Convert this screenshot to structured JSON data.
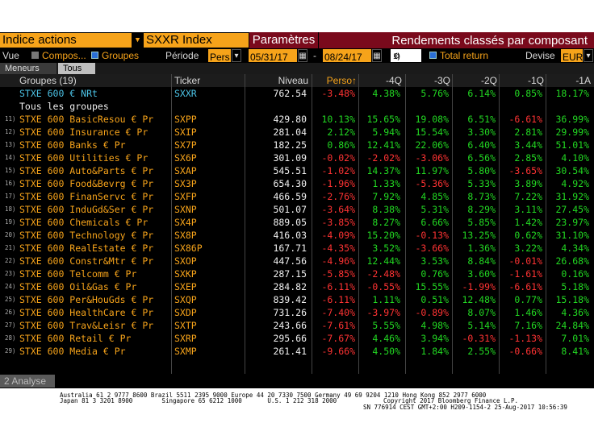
{
  "topbar": {
    "index_label": "Indice actions",
    "ticker": "SXXR Index",
    "params_label": "Paramètres",
    "title": "Rendements classés par composant"
  },
  "controls": {
    "vue_label": "Vue",
    "opt_compos": "Compos...",
    "opt_groupes": "Groupes",
    "periode_label": "Période",
    "period_value": "Pers",
    "date_start": "05/31/17",
    "date_sep": "-",
    "date_end": "08/24/17",
    "setting_code": "1)",
    "total_return_label": "Total return",
    "devise_label": "Devise",
    "devise_value": "EUR"
  },
  "tabs": [
    "Meneurs",
    "Tous"
  ],
  "headers": {
    "groupes": "Groupes (19)",
    "ticker": "Ticker",
    "niveau": "Niveau",
    "perso": "Perso↑",
    "m4q": "-4Q",
    "m3q": "-3Q",
    "m2q": "-2Q",
    "m1q": "-1Q",
    "m1a": "-1A"
  },
  "colors": {
    "orange": "#f6a31a",
    "green": "#22d822",
    "red": "#ff3333",
    "maroon": "#7a0a1c",
    "cyan": "#4cc3e6"
  },
  "index_row": {
    "name": "STXE 600 € NRt",
    "ticker": "SXXR",
    "niveau": "762.54",
    "perso": "-3.48%",
    "q4": "4.38%",
    "q3": "5.76%",
    "q2": "6.14%",
    "q1": "0.85%",
    "a1": "18.17%"
  },
  "all_groups_label": "Tous les groupes",
  "rows": [
    {
      "idx": "11)",
      "name": "STXE 600 BasicResou € Pr",
      "ticker": "SXPP",
      "niveau": "429.80",
      "perso": "10.13%",
      "q4": "15.65%",
      "q3": "19.08%",
      "q2": "6.51%",
      "q1": "-6.61%",
      "a1": "36.99%"
    },
    {
      "idx": "12)",
      "name": "STXE 600 Insurance € Pr",
      "ticker": "SXIP",
      "niveau": "281.04",
      "perso": "2.12%",
      "q4": "5.94%",
      "q3": "15.54%",
      "q2": "3.30%",
      "q1": "2.81%",
      "a1": "29.99%"
    },
    {
      "idx": "13)",
      "name": "STXE 600 Banks € Pr",
      "ticker": "SX7P",
      "niveau": "182.25",
      "perso": "0.86%",
      "q4": "12.41%",
      "q3": "22.06%",
      "q2": "6.40%",
      "q1": "3.44%",
      "a1": "51.01%"
    },
    {
      "idx": "14)",
      "name": "STXE 600 Utilities € Pr",
      "ticker": "SX6P",
      "niveau": "301.09",
      "perso": "-0.02%",
      "q4": "-2.02%",
      "q3": "-3.06%",
      "q2": "6.56%",
      "q1": "2.85%",
      "a1": "4.10%"
    },
    {
      "idx": "15)",
      "name": "STXE 600 Auto&Parts € Pr",
      "ticker": "SXAP",
      "niveau": "545.51",
      "perso": "-1.02%",
      "q4": "14.37%",
      "q3": "11.97%",
      "q2": "5.80%",
      "q1": "-3.65%",
      "a1": "30.54%"
    },
    {
      "idx": "16)",
      "name": "STXE 600 Food&Bevrg € Pr",
      "ticker": "SX3P",
      "niveau": "654.30",
      "perso": "-1.96%",
      "q4": "1.33%",
      "q3": "-5.36%",
      "q2": "5.33%",
      "q1": "3.89%",
      "a1": "4.92%"
    },
    {
      "idx": "17)",
      "name": "STXE 600 FinanServc € Pr",
      "ticker": "SXFP",
      "niveau": "466.59",
      "perso": "-2.76%",
      "q4": "7.92%",
      "q3": "4.85%",
      "q2": "8.73%",
      "q1": "7.22%",
      "a1": "31.92%"
    },
    {
      "idx": "18)",
      "name": "STXE 600 InduGd&Ser € Pr",
      "ticker": "SXNP",
      "niveau": "501.07",
      "perso": "-3.64%",
      "q4": "8.38%",
      "q3": "5.31%",
      "q2": "8.29%",
      "q1": "3.11%",
      "a1": "27.45%"
    },
    {
      "idx": "19)",
      "name": "STXE 600 Chemicals € Pr",
      "ticker": "SX4P",
      "niveau": "889.05",
      "perso": "-3.85%",
      "q4": "8.27%",
      "q3": "6.66%",
      "q2": "5.85%",
      "q1": "1.42%",
      "a1": "23.97%"
    },
    {
      "idx": "20)",
      "name": "STXE 600 Technology € Pr",
      "ticker": "SX8P",
      "niveau": "416.03",
      "perso": "-4.09%",
      "q4": "15.20%",
      "q3": "-0.13%",
      "q2": "13.25%",
      "q1": "0.62%",
      "a1": "31.10%"
    },
    {
      "idx": "21)",
      "name": "STXE 600 RealEstate € Pr",
      "ticker": "SX86P",
      "niveau": "167.71",
      "perso": "-4.35%",
      "q4": "3.52%",
      "q3": "-3.66%",
      "q2": "1.36%",
      "q1": "3.22%",
      "a1": "4.34%"
    },
    {
      "idx": "22)",
      "name": "STXE 600 Constr&Mtr € Pr",
      "ticker": "SXOP",
      "niveau": "447.56",
      "perso": "-4.96%",
      "q4": "12.44%",
      "q3": "3.53%",
      "q2": "8.84%",
      "q1": "-0.01%",
      "a1": "26.68%"
    },
    {
      "idx": "23)",
      "name": "STXE 600 Telcomm € Pr",
      "ticker": "SXKP",
      "niveau": "287.15",
      "perso": "-5.85%",
      "q4": "-2.48%",
      "q3": "0.76%",
      "q2": "3.60%",
      "q1": "-1.61%",
      "a1": "0.16%"
    },
    {
      "idx": "24)",
      "name": "STXE 600 Oil&Gas € Pr",
      "ticker": "SXEP",
      "niveau": "284.82",
      "perso": "-6.11%",
      "q4": "-0.55%",
      "q3": "15.55%",
      "q2": "-1.99%",
      "q1": "-6.61%",
      "a1": "5.18%"
    },
    {
      "idx": "25)",
      "name": "STXE 600 Per&HouGds € Pr",
      "ticker": "SXQP",
      "niveau": "839.42",
      "perso": "-6.11%",
      "q4": "1.11%",
      "q3": "0.51%",
      "q2": "12.48%",
      "q1": "0.77%",
      "a1": "15.18%"
    },
    {
      "idx": "26)",
      "name": "STXE 600 HealthCare € Pr",
      "ticker": "SXDP",
      "niveau": "731.26",
      "perso": "-7.40%",
      "q4": "-3.97%",
      "q3": "-0.89%",
      "q2": "8.07%",
      "q1": "1.46%",
      "a1": "4.36%"
    },
    {
      "idx": "27)",
      "name": "STXE 600 Trav&Leisr € Pr",
      "ticker": "SXTP",
      "niveau": "243.66",
      "perso": "-7.61%",
      "q4": "5.55%",
      "q3": "4.98%",
      "q2": "5.14%",
      "q1": "7.16%",
      "a1": "24.84%"
    },
    {
      "idx": "28)",
      "name": "STXE 600 Retail € Pr",
      "ticker": "SXRP",
      "niveau": "295.66",
      "perso": "-7.67%",
      "q4": "4.46%",
      "q3": "3.94%",
      "q2": "-0.31%",
      "q1": "-1.13%",
      "a1": "7.01%"
    },
    {
      "idx": "29)",
      "name": "STXE 600 Media € Pr",
      "ticker": "SXMP",
      "niveau": "261.41",
      "perso": "-9.66%",
      "q4": "4.50%",
      "q3": "1.84%",
      "q2": "2.55%",
      "q1": "-0.66%",
      "a1": "8.41%"
    }
  ],
  "analyse_label": "Analyse",
  "footer": {
    "line1": "Australia 61 2 9777 8600 Brazil 5511 2395 9000 Europe 44 20 7330 7500 Germany 49 69 9204 1210 Hong Kong 852 2977 6000",
    "line2a": "Japan 81 3 3201 8900        Singapore 65 6212 1000       U.S. 1 212 318 2000",
    "line2b": "Copyright 2017 Bloomberg Finance L.P.",
    "line3": "SN 776914 CEST GMT+2:00 H209-1154-2 25-Aug-2017 10:56:39"
  }
}
